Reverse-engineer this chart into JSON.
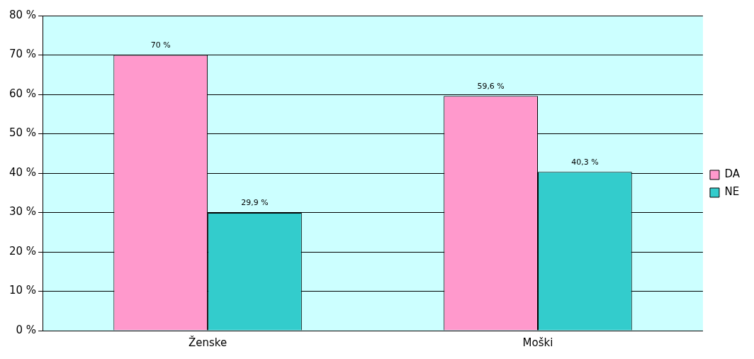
{
  "chart_data": {
    "type": "bar",
    "categories": [
      "Ženske",
      "Moški"
    ],
    "series": [
      {
        "name": "DA",
        "color": "#ff99cc",
        "values": [
          70,
          59.6
        ],
        "value_labels": [
          "70 %",
          "59,6 %"
        ]
      },
      {
        "name": "NE",
        "color": "#33cccc",
        "values": [
          29.9,
          40.3
        ],
        "value_labels": [
          "29,9 %",
          "40,3 %"
        ]
      }
    ],
    "ylim": [
      0,
      80
    ],
    "yticks": [
      {
        "value": 0,
        "label": "0 %"
      },
      {
        "value": 10,
        "label": "10 %"
      },
      {
        "value": 20,
        "label": "20 %"
      },
      {
        "value": 30,
        "label": "30 %"
      },
      {
        "value": 40,
        "label": "40 %"
      },
      {
        "value": 50,
        "label": "50 %"
      },
      {
        "value": 60,
        "label": "60 %"
      },
      {
        "value": 70,
        "label": "70 %"
      },
      {
        "value": 80,
        "label": "80 %"
      }
    ],
    "grid": "y",
    "legend": "right"
  }
}
